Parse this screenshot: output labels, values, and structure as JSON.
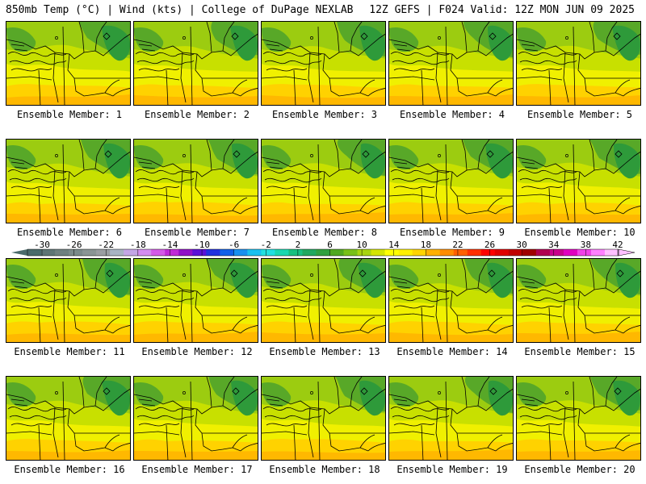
{
  "header": {
    "left": "850mb Temp (°C) | Wind (kts) | College of DuPage NEXLAB",
    "right": "12Z GEFS | F024 Valid: 12Z MON JUN 09 2025"
  },
  "panels": [
    {
      "label": "Ensemble Member: 1"
    },
    {
      "label": "Ensemble Member: 2"
    },
    {
      "label": "Ensemble Member: 3"
    },
    {
      "label": "Ensemble Member: 4"
    },
    {
      "label": "Ensemble Member: 5"
    },
    {
      "label": "Ensemble Member: 6"
    },
    {
      "label": "Ensemble Member: 7"
    },
    {
      "label": "Ensemble Member: 8"
    },
    {
      "label": "Ensemble Member: 9"
    },
    {
      "label": "Ensemble Member: 10"
    },
    {
      "label": "Ensemble Member: 11"
    },
    {
      "label": "Ensemble Member: 12"
    },
    {
      "label": "Ensemble Member: 13"
    },
    {
      "label": "Ensemble Member: 14"
    },
    {
      "label": "Ensemble Member: 15"
    },
    {
      "label": "Ensemble Member: 16"
    },
    {
      "label": "Ensemble Member: 17"
    },
    {
      "label": "Ensemble Member: 18"
    },
    {
      "label": "Ensemble Member: 19"
    },
    {
      "label": "Ensemble Member: 20"
    }
  ],
  "colorbar": {
    "labels": [
      "-30",
      "-26",
      "-22",
      "-18",
      "-14",
      "-10",
      "-6",
      "-2",
      "2",
      "6",
      "10",
      "14",
      "18",
      "22",
      "26",
      "30",
      "34",
      "38",
      "42"
    ],
    "colors": [
      "#4a6b6b",
      "#5e7575",
      "#6e8080",
      "#7a8a8a",
      "#8a9595",
      "#9a9ea2",
      "#a8b4c4",
      "#c4a6e6",
      "#d48cf0",
      "#d45ae8",
      "#c02ad8",
      "#9010c8",
      "#5a10d8",
      "#2030e0",
      "#1060e8",
      "#1890f0",
      "#18c0f0",
      "#20e0e0",
      "#18d8b0",
      "#18c080",
      "#20a860",
      "#30a040",
      "#50a820",
      "#78c018",
      "#a8d410",
      "#d4e400",
      "#ffff00",
      "#fff000",
      "#ffd400",
      "#ffb000",
      "#ff8c00",
      "#ff6000",
      "#ff3000",
      "#ff0000",
      "#e00000",
      "#c00000",
      "#a00000",
      "#b00050",
      "#c8008c",
      "#e000c0",
      "#f040e8",
      "#ff80ff",
      "#ffc0ff"
    ]
  }
}
